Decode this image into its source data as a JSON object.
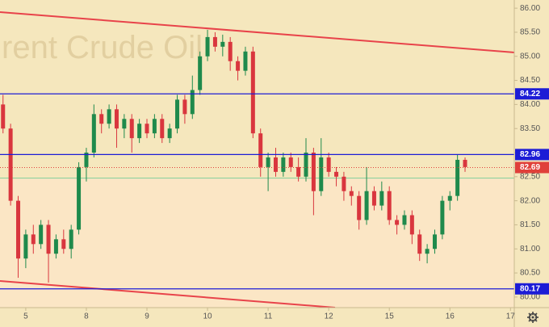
{
  "chart_data": {
    "type": "candlestick",
    "watermark": "rent Crude Oil",
    "up_color": "#1f8a4c",
    "down_color": "#d9363e",
    "level_color": "#1c1cd6",
    "last_color": "#e0403a",
    "x": [
      -3,
      -2,
      -1,
      0,
      1,
      2,
      3,
      4,
      5,
      6,
      7,
      8,
      9,
      10,
      11,
      12,
      13,
      14,
      15,
      16,
      17,
      18,
      19,
      20,
      21,
      22,
      23,
      24,
      25,
      26,
      27,
      28,
      29,
      30,
      31,
      32,
      33,
      34,
      35,
      36,
      37,
      38,
      39,
      40,
      41,
      42,
      43,
      44,
      45,
      46,
      47,
      48,
      49,
      50,
      51,
      52,
      53,
      54,
      55,
      56,
      57,
      58
    ],
    "open": [
      84.0,
      83.5,
      82.0,
      80.8,
      81.3,
      81.1,
      81.5,
      80.9,
      81.2,
      81.0,
      81.4,
      82.7,
      83.0,
      83.8,
      83.6,
      83.9,
      83.5,
      83.7,
      83.3,
      83.6,
      83.4,
      83.7,
      83.3,
      83.5,
      84.1,
      83.8,
      84.3,
      85.0,
      85.4,
      85.2,
      85.3,
      84.9,
      84.7,
      85.1,
      83.4,
      82.7,
      82.9,
      82.6,
      82.9,
      82.7,
      82.5,
      83.0,
      82.2,
      82.9,
      82.6,
      82.5,
      82.2,
      82.1,
      81.6,
      82.2,
      81.9,
      82.2,
      81.6,
      81.5,
      81.7,
      81.3,
      80.9,
      81.0,
      81.3,
      82.0,
      82.1,
      82.85
    ],
    "high": [
      84.2,
      83.6,
      82.1,
      81.4,
      81.5,
      81.6,
      81.6,
      81.3,
      81.4,
      81.5,
      82.8,
      83.1,
      84.0,
      83.9,
      84.0,
      84.0,
      83.8,
      83.8,
      83.7,
      83.7,
      83.8,
      83.8,
      83.6,
      84.2,
      84.2,
      84.6,
      85.1,
      85.55,
      85.5,
      85.45,
      85.4,
      85.0,
      85.2,
      85.2,
      83.5,
      83.0,
      83.1,
      83.0,
      83.0,
      82.9,
      83.3,
      83.1,
      83.3,
      83.0,
      82.7,
      82.6,
      82.3,
      82.2,
      82.7,
      82.3,
      82.4,
      82.3,
      81.7,
      81.8,
      81.8,
      81.4,
      81.1,
      81.4,
      82.1,
      82.2,
      82.95,
      82.9
    ],
    "low": [
      83.4,
      81.9,
      80.4,
      80.6,
      80.9,
      81.0,
      80.3,
      80.8,
      80.9,
      80.8,
      81.3,
      82.4,
      82.9,
      83.4,
      83.5,
      83.1,
      83.3,
      83.0,
      83.2,
      83.3,
      83.3,
      83.2,
      83.2,
      83.4,
      83.6,
      83.7,
      84.2,
      84.9,
      85.1,
      85.0,
      84.7,
      84.5,
      84.6,
      83.3,
      82.5,
      82.2,
      82.5,
      82.5,
      82.6,
      82.4,
      82.4,
      81.7,
      82.1,
      82.5,
      82.3,
      82.0,
      81.9,
      81.4,
      81.5,
      81.8,
      81.8,
      81.5,
      81.3,
      81.4,
      81.1,
      80.75,
      80.7,
      80.9,
      81.2,
      81.8,
      82.0,
      82.6
    ],
    "close": [
      83.5,
      82.0,
      80.8,
      81.3,
      81.1,
      81.5,
      80.9,
      81.2,
      81.0,
      81.4,
      82.7,
      83.0,
      83.8,
      83.6,
      83.9,
      83.5,
      83.7,
      83.3,
      83.6,
      83.4,
      83.7,
      83.3,
      83.5,
      84.1,
      83.8,
      84.3,
      85.0,
      85.4,
      85.2,
      85.3,
      84.9,
      84.7,
      85.1,
      83.4,
      82.7,
      82.9,
      82.6,
      82.9,
      82.7,
      82.5,
      83.0,
      82.2,
      82.9,
      82.6,
      82.5,
      82.2,
      82.1,
      81.6,
      82.2,
      81.9,
      82.2,
      81.6,
      81.5,
      81.7,
      81.3,
      80.9,
      81.0,
      81.3,
      82.0,
      82.1,
      82.85,
      82.7
    ],
    "xlim": [
      -3.4,
      64.5
    ],
    "xticks": [
      {
        "value": 0,
        "label": "5"
      },
      {
        "value": 8,
        "label": "8"
      },
      {
        "value": 16,
        "label": "9"
      },
      {
        "value": 24,
        "label": "10"
      },
      {
        "value": 32,
        "label": "11"
      },
      {
        "value": 40,
        "label": "12"
      },
      {
        "value": 48,
        "label": "15"
      },
      {
        "value": 56,
        "label": "16"
      },
      {
        "value": 64,
        "label": "17"
      }
    ],
    "ylim": [
      79.78,
      86.17
    ],
    "yticks": [
      {
        "value": 80,
        "label": "80.00"
      },
      {
        "value": 80.5,
        "label": "80.50"
      },
      {
        "value": 81,
        "label": "81.00"
      },
      {
        "value": 81.5,
        "label": "81.50"
      },
      {
        "value": 82,
        "label": "82.00"
      },
      {
        "value": 82.5,
        "label": "82.50"
      },
      {
        "value": 83,
        "label": "83.00"
      },
      {
        "value": 83.5,
        "label": "83.50"
      },
      {
        "value": 84,
        "label": "84.00"
      },
      {
        "value": 84.5,
        "label": "84.50"
      },
      {
        "value": 85,
        "label": "85.00"
      },
      {
        "value": 85.5,
        "label": "85.50"
      },
      {
        "value": 86,
        "label": "86.00"
      }
    ],
    "levels": [
      84.22,
      82.96,
      80.17
    ],
    "last_price": 82.69,
    "zone_line": 82.47
  }
}
